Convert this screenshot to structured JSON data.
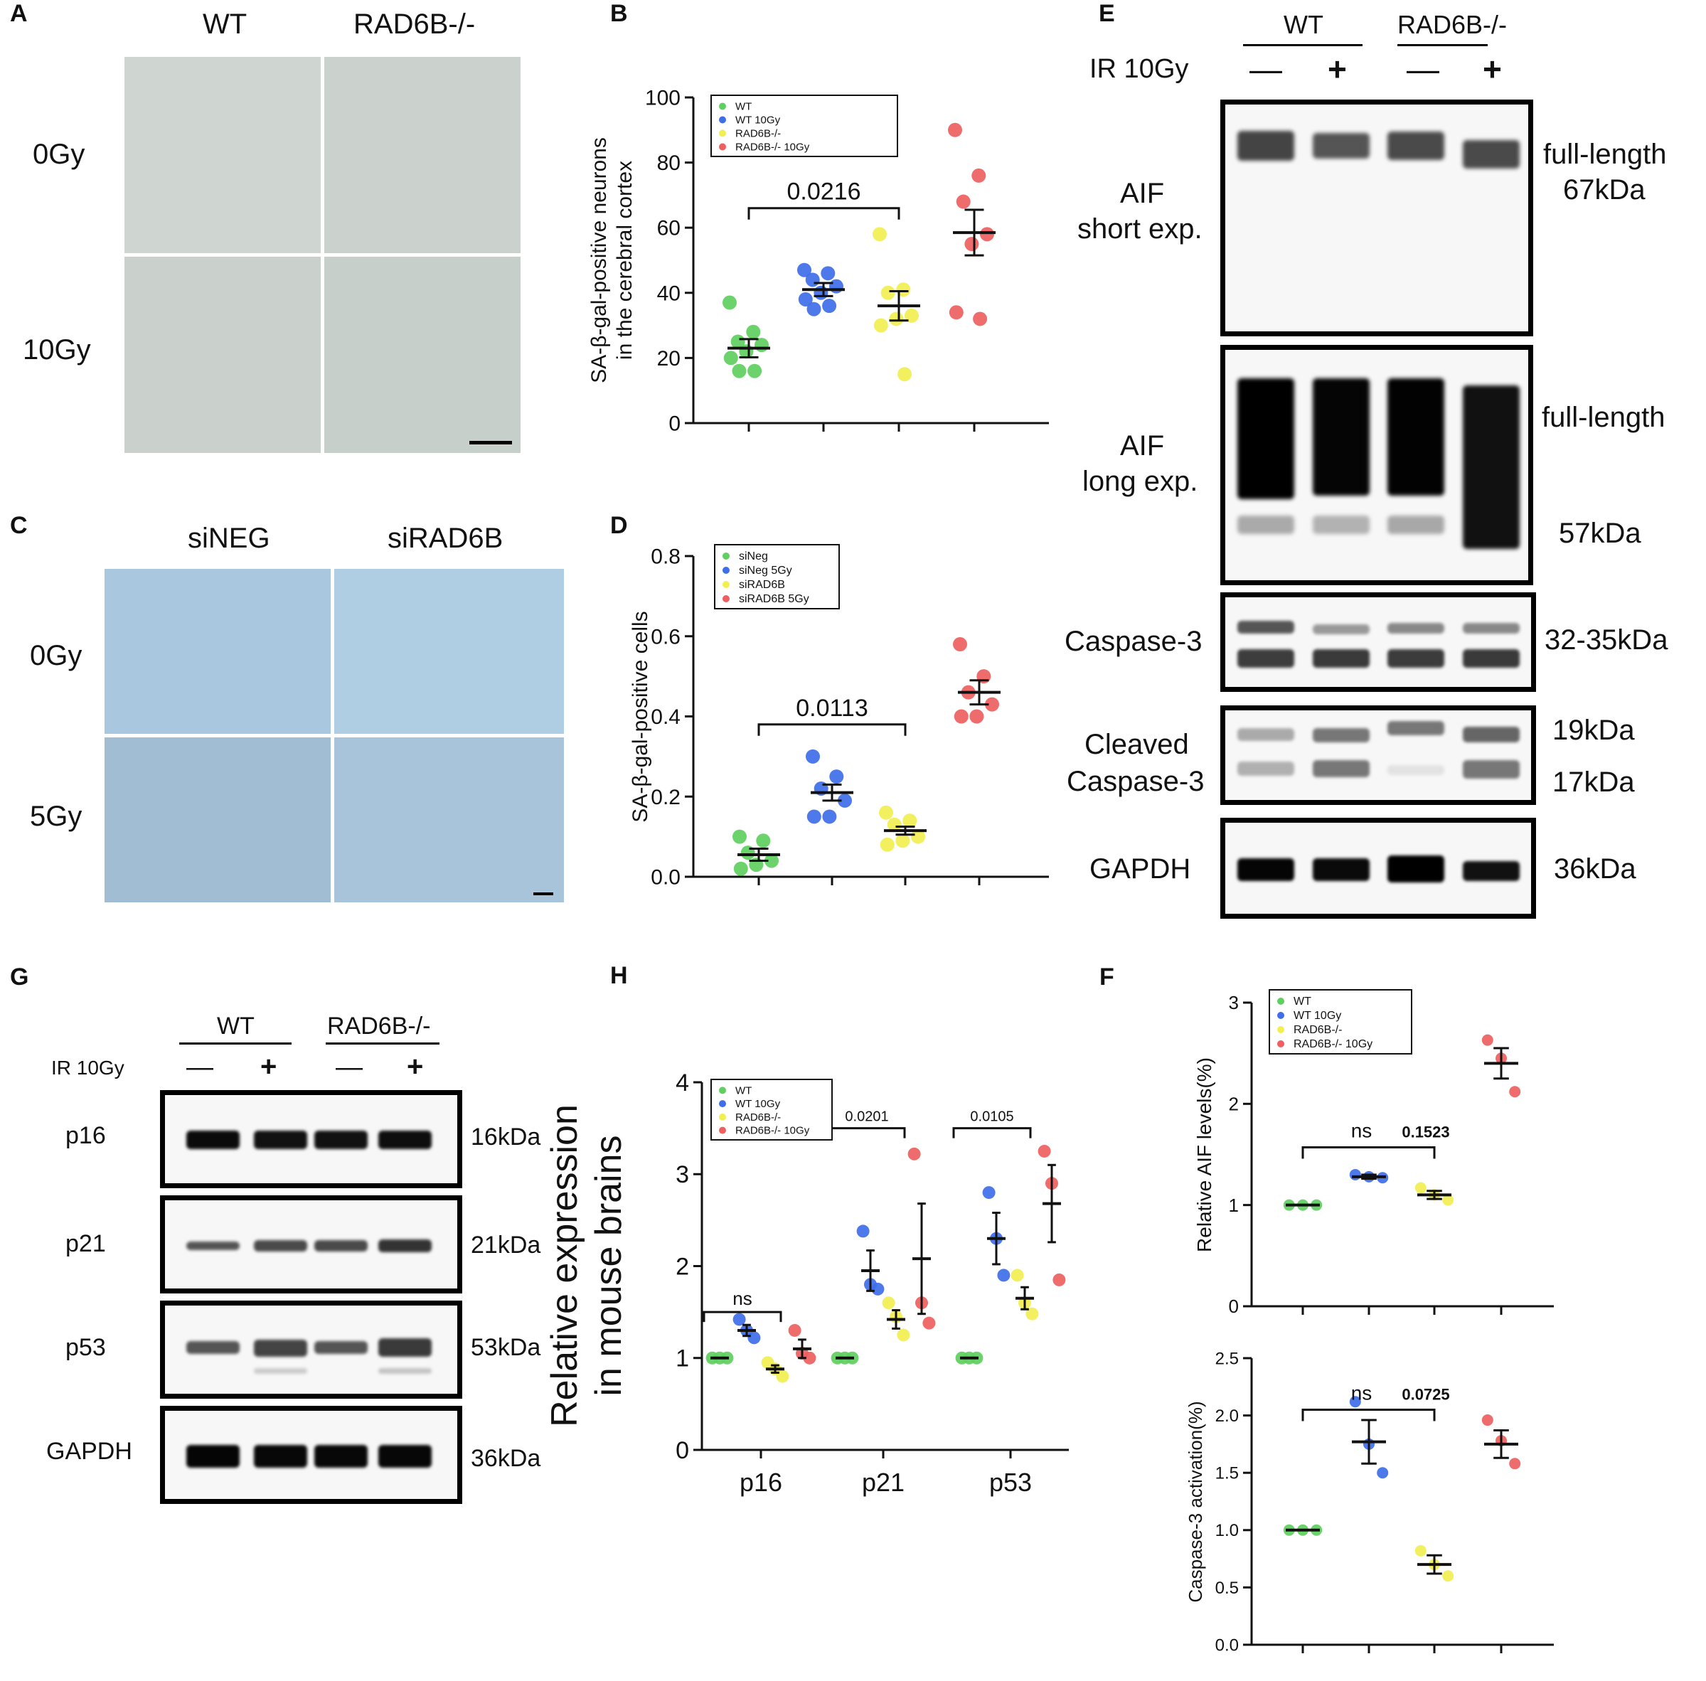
{
  "panelA": {
    "letter": "A",
    "cols": [
      "WT",
      "RAD6B-/-"
    ],
    "rows": [
      "0Gy",
      "10Gy"
    ]
  },
  "panelC": {
    "letter": "C",
    "cols": [
      "siNEG",
      "siRAD6B"
    ],
    "rows": [
      "0Gy",
      "5Gy"
    ]
  },
  "panelE": {
    "letter": "E",
    "groups": [
      "WT",
      "RAD6B-/-"
    ],
    "ir_label": "IR 10Gy",
    "signs": [
      "—",
      "+",
      "—",
      "+"
    ],
    "blots": [
      {
        "name": "AIF\nshort exp.",
        "left1": "AIF",
        "left2": "short exp.",
        "right1": "full-length",
        "right2": "67kDa"
      },
      {
        "name": "AIF long exp.",
        "left1": "AIF",
        "left2": "long exp.",
        "right1": "full-length",
        "right2": "57kDa"
      },
      {
        "name": "Caspase-3",
        "left1": "Caspase-3",
        "right1": "32-35kDa"
      },
      {
        "name": "Cleaved Caspase-3",
        "left1": "Cleaved",
        "left2": "Caspase-3",
        "right1": "19kDa",
        "right2": "17kDa"
      },
      {
        "name": "GAPDH",
        "left1": "GAPDH",
        "right1": "36kDa"
      }
    ]
  },
  "panelG": {
    "letter": "G",
    "groups": [
      "WT",
      "RAD6B-/-"
    ],
    "ir_label": "IR 10Gy",
    "signs": [
      "—",
      "+",
      "—",
      "+"
    ],
    "blots": [
      {
        "left": "p16",
        "right": "16kDa"
      },
      {
        "left": "p21",
        "right": "21kDa"
      },
      {
        "left": "p53",
        "right": "53kDa"
      },
      {
        "left": "GAPDH",
        "right": "36kDa"
      }
    ]
  },
  "colors": {
    "green": "#5fcf5f",
    "blue": "#3f6ee8",
    "yellow": "#f2ef52",
    "red": "#ee5f5f"
  },
  "chart_data": [
    {
      "id": "B",
      "letter": "B",
      "type": "scatter",
      "ylabel_lines": [
        "SA-β-gal-positive neurons",
        "in the cerebral cortex"
      ],
      "ylim": [
        0,
        100
      ],
      "yticks": [
        0,
        20,
        40,
        60,
        80,
        100
      ],
      "legend": [
        "WT",
        "WT 10Gy",
        "RAD6B-/-",
        "RAD6B-/- 10Gy"
      ],
      "bracket": {
        "from": 0,
        "to": 2,
        "label": "0.0216"
      },
      "groups": [
        {
          "mean": 23,
          "sem": 2.8,
          "points": [
            37,
            28,
            25,
            24,
            22,
            20,
            16,
            16
          ]
        },
        {
          "mean": 41,
          "sem": 2,
          "points": [
            47,
            46,
            44,
            42,
            40,
            38,
            36,
            35
          ]
        },
        {
          "mean": 36,
          "sem": 4.5,
          "points": [
            58,
            41,
            40,
            33,
            32,
            30,
            15
          ]
        },
        {
          "mean": 58.5,
          "sem": 7,
          "points": [
            90,
            76,
            68,
            58,
            55,
            34,
            32
          ]
        }
      ]
    },
    {
      "id": "D",
      "letter": "D",
      "type": "scatter",
      "ylabel_lines": [
        "SA-β-gal-positive cells"
      ],
      "ylim": [
        0,
        0.8
      ],
      "yticks": [
        "0.0",
        "0.2",
        "0.4",
        "0.6",
        "0.8"
      ],
      "legend": [
        "siNeg",
        "siNeg 5Gy",
        "siRAD6B",
        "siRAD6B 5Gy"
      ],
      "bracket": {
        "from": 0,
        "to": 2,
        "label": "0.0113"
      },
      "groups": [
        {
          "mean": 0.055,
          "sem": 0.015,
          "points": [
            0.1,
            0.09,
            0.06,
            0.04,
            0.03,
            0.02
          ]
        },
        {
          "mean": 0.21,
          "sem": 0.02,
          "points": [
            0.3,
            0.25,
            0.22,
            0.19,
            0.15,
            0.15
          ]
        },
        {
          "mean": 0.115,
          "sem": 0.01,
          "points": [
            0.16,
            0.14,
            0.13,
            0.1,
            0.09,
            0.08
          ]
        },
        {
          "mean": 0.46,
          "sem": 0.03,
          "points": [
            0.58,
            0.5,
            0.46,
            0.43,
            0.4,
            0.4
          ]
        }
      ]
    },
    {
      "id": "H",
      "letter": "H",
      "type": "scatter",
      "ylabel_lines": [
        "Relative expression",
        "in mouse brains"
      ],
      "ylim": [
        0,
        4
      ],
      "yticks": [
        0,
        1,
        2,
        3,
        4
      ],
      "categories": [
        "p16",
        "p21",
        "p53"
      ],
      "legend": [
        "WT",
        "WT 10Gy",
        "RAD6B-/-",
        "RAD6B-/- 10Gy"
      ],
      "brackets": [
        {
          "category": 0,
          "label": "ns"
        },
        {
          "category": 1,
          "label": "0.0201"
        },
        {
          "category": 2,
          "label": "0.0105"
        }
      ],
      "groups": [
        [
          {
            "mean": 1,
            "sem": 0,
            "points": [
              1,
              1,
              1
            ]
          },
          {
            "mean": 1.3,
            "sem": 0.06,
            "points": [
              1.42,
              1.3,
              1.22
            ]
          },
          {
            "mean": 0.88,
            "sem": 0.04,
            "points": [
              0.95,
              0.88,
              0.8
            ]
          },
          {
            "mean": 1.1,
            "sem": 0.1,
            "points": [
              1.3,
              1.05,
              1.0
            ]
          }
        ],
        [
          {
            "mean": 1,
            "sem": 0,
            "points": [
              1,
              1,
              1
            ]
          },
          {
            "mean": 1.95,
            "sem": 0.22,
            "points": [
              2.38,
              1.8,
              1.75
            ]
          },
          {
            "mean": 1.42,
            "sem": 0.1,
            "points": [
              1.6,
              1.45,
              1.25
            ]
          },
          {
            "mean": 2.08,
            "sem": 0.6,
            "points": [
              3.22,
              1.6,
              1.38
            ]
          }
        ],
        [
          {
            "mean": 1,
            "sem": 0,
            "points": [
              1,
              1,
              1
            ]
          },
          {
            "mean": 2.3,
            "sem": 0.28,
            "points": [
              2.8,
              2.3,
              1.9
            ]
          },
          {
            "mean": 1.65,
            "sem": 0.12,
            "points": [
              1.9,
              1.6,
              1.48
            ]
          },
          {
            "mean": 2.68,
            "sem": 0.42,
            "points": [
              3.25,
              2.9,
              1.85
            ]
          }
        ]
      ]
    },
    {
      "id": "F1",
      "letter": "F",
      "type": "scatter",
      "ylabel_lines": [
        "Relative AIF levels(%)"
      ],
      "ylim": [
        0,
        3
      ],
      "yticks": [
        0,
        1,
        2,
        3
      ],
      "legend": [
        "WT",
        "WT 10Gy",
        "RAD6B-/-",
        "RAD6B-/- 10Gy"
      ],
      "bracket": {
        "from": 0,
        "to": 2,
        "label": "ns",
        "label2": "0.1523"
      },
      "groups": [
        {
          "mean": 1,
          "sem": 0,
          "points": [
            1,
            1,
            1
          ]
        },
        {
          "mean": 1.28,
          "sem": 0.02,
          "points": [
            1.3,
            1.28,
            1.27
          ]
        },
        {
          "mean": 1.1,
          "sem": 0.04,
          "points": [
            1.17,
            1.1,
            1.05
          ]
        },
        {
          "mean": 2.4,
          "sem": 0.15,
          "points": [
            2.63,
            2.45,
            2.12
          ]
        }
      ]
    },
    {
      "id": "F2",
      "letter": "",
      "type": "scatter",
      "ylabel_lines": [
        "Caspase-3 activation(%)"
      ],
      "ylim": [
        0,
        2.5
      ],
      "yticks": [
        "0.0",
        "0.5",
        "1.0",
        "1.5",
        "2.0",
        "2.5"
      ],
      "legend": [],
      "bracket": {
        "from": 0,
        "to": 2,
        "label": "ns",
        "label2": "0.0725"
      },
      "groups": [
        {
          "mean": 1,
          "sem": 0,
          "points": [
            1,
            1,
            1
          ]
        },
        {
          "mean": 1.77,
          "sem": 0.19,
          "points": [
            2.12,
            1.75,
            1.5
          ]
        },
        {
          "mean": 0.7,
          "sem": 0.08,
          "points": [
            0.82,
            0.7,
            0.6
          ]
        },
        {
          "mean": 1.75,
          "sem": 0.12,
          "points": [
            1.96,
            1.78,
            1.58
          ]
        }
      ]
    }
  ]
}
